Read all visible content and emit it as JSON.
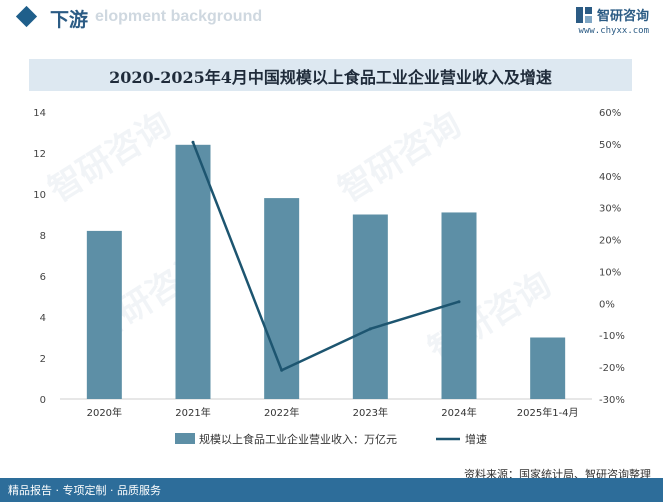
{
  "header": {
    "section_title": "下游",
    "ghost_text": "elopment background",
    "brand_name": "智研咨询",
    "brand_url": "www.chyxx.com"
  },
  "chart_data": {
    "type": "bar",
    "title": "2020-2025年4月中国规模以上食品工业企业营业收入及增速",
    "categories": [
      "2020年",
      "2021年",
      "2022年",
      "2023年",
      "2024年",
      "2025年1-4月"
    ],
    "series": [
      {
        "name": "规模以上食品工业企业营业收入：万亿元",
        "type": "bar",
        "axis": "left",
        "values": [
          8.2,
          12.4,
          9.8,
          9.0,
          9.1,
          3.0
        ],
        "color": "#5d8fa6"
      },
      {
        "name": "增速",
        "type": "line",
        "axis": "right",
        "values": [
          null,
          50.5,
          -21.0,
          -8.0,
          0.5,
          null
        ],
        "color": "#1d5570"
      }
    ],
    "y_left": {
      "min": 0,
      "max": 14,
      "ticks": [
        "0",
        "2",
        "4",
        "6",
        "8",
        "10",
        "12",
        "14"
      ]
    },
    "y_right": {
      "min": -30,
      "max": 60,
      "ticks": [
        "-30%",
        "-20%",
        "-10%",
        "0%",
        "10%",
        "20%",
        "30%",
        "40%",
        "50%",
        "60%"
      ]
    },
    "legend": {
      "placement": "bottom",
      "bar_label": "规模以上食品工业企业营业收入：万亿元",
      "line_label": "增速"
    }
  },
  "footer": {
    "left_text": "精品报告 · 专项定制 · 品质服务",
    "source_text": "资料来源：国家统计局、智研咨询整理",
    "watermark_text": "智研咨询"
  },
  "colors": {
    "accent": "#2b5b84",
    "bar": "#5d8fa6",
    "line": "#1d5570",
    "title_band": "#dde8f1",
    "footer": "#2d6d9a"
  }
}
